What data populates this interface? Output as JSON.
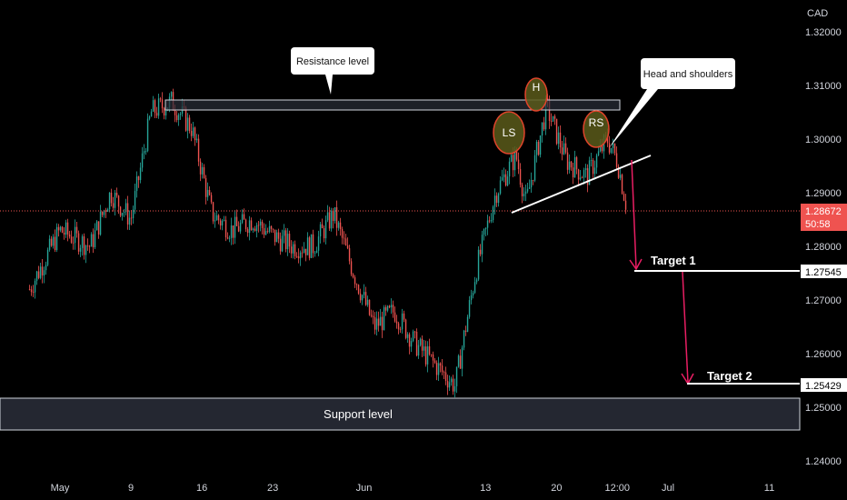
{
  "currency": "CAD",
  "colors": {
    "bull": "#26a69a",
    "bear": "#ef5350",
    "price_line": "#ef5350",
    "arrow": "#e91e63",
    "bg": "#000000"
  },
  "annotations": {
    "resistance": "Resistance level",
    "head_shoulders": "Head and shoulders",
    "left_shoulder": "LS",
    "head": "H",
    "right_shoulder": "RS",
    "target1": "Target 1",
    "target2": "Target 2",
    "support": "Support level"
  },
  "price_badges": {
    "current_price": "1.28672",
    "countdown": "50:58",
    "target1": "1.27545",
    "target2": "1.25429"
  },
  "chart_data": {
    "type": "candlestick",
    "title": "",
    "ylabel": "CAD",
    "ylim": [
      1.236,
      1.326
    ],
    "y_ticks": [
      "1.32000",
      "1.31000",
      "1.30000",
      "1.29000",
      "1.28000",
      "1.27000",
      "1.26000",
      "1.25000",
      "1.24000"
    ],
    "y_tick_values": [
      1.32,
      1.31,
      1.3,
      1.29,
      1.28,
      1.27,
      1.26,
      1.25,
      1.24
    ],
    "x_ticks": [
      "May",
      "9",
      "16",
      "23",
      "Jun",
      "13",
      "20",
      "12:00",
      "Jul",
      "11"
    ],
    "x_tick_dates": [
      "2022-05-02",
      "2022-05-09",
      "2022-05-16",
      "2022-05-23",
      "2022-06-01",
      "2022-06-13",
      "2022-06-20",
      "2022-06-26",
      "2022-07-01",
      "2022-07-11"
    ],
    "close_series_anchors": [
      [
        "2022-04-29",
        1.272
      ],
      [
        "2022-05-02",
        1.283
      ],
      [
        "2022-05-05",
        1.28
      ],
      [
        "2022-05-07",
        1.29
      ],
      [
        "2022-05-09",
        1.285
      ],
      [
        "2022-05-11",
        1.305
      ],
      [
        "2022-05-13",
        1.307
      ],
      [
        "2022-05-15",
        1.302
      ],
      [
        "2022-05-17",
        1.286
      ],
      [
        "2022-05-19",
        1.283
      ],
      [
        "2022-05-21",
        1.285
      ],
      [
        "2022-05-23",
        1.282
      ],
      [
        "2022-05-25",
        1.28
      ],
      [
        "2022-05-27",
        1.28
      ],
      [
        "2022-05-29",
        1.286
      ],
      [
        "2022-05-31",
        1.275
      ],
      [
        "2022-06-02",
        1.265
      ],
      [
        "2022-06-04",
        1.268
      ],
      [
        "2022-06-06",
        1.262
      ],
      [
        "2022-06-08",
        1.258
      ],
      [
        "2022-06-10",
        1.254
      ],
      [
        "2022-06-12",
        1.275
      ],
      [
        "2022-06-14",
        1.29
      ],
      [
        "2022-06-16",
        1.297
      ],
      [
        "2022-06-17",
        1.288
      ],
      [
        "2022-06-19",
        1.306
      ],
      [
        "2022-06-21",
        1.296
      ],
      [
        "2022-06-23",
        1.293
      ],
      [
        "2022-06-25",
        1.3
      ],
      [
        "2022-06-26",
        1.296
      ],
      [
        "2022-06-27",
        1.2867
      ]
    ],
    "levels": {
      "resistance": [
        1.306,
        1.307
      ],
      "support": [
        1.245,
        1.252
      ],
      "target1": 1.27545,
      "target2": 1.25429,
      "current": 1.28672
    }
  }
}
